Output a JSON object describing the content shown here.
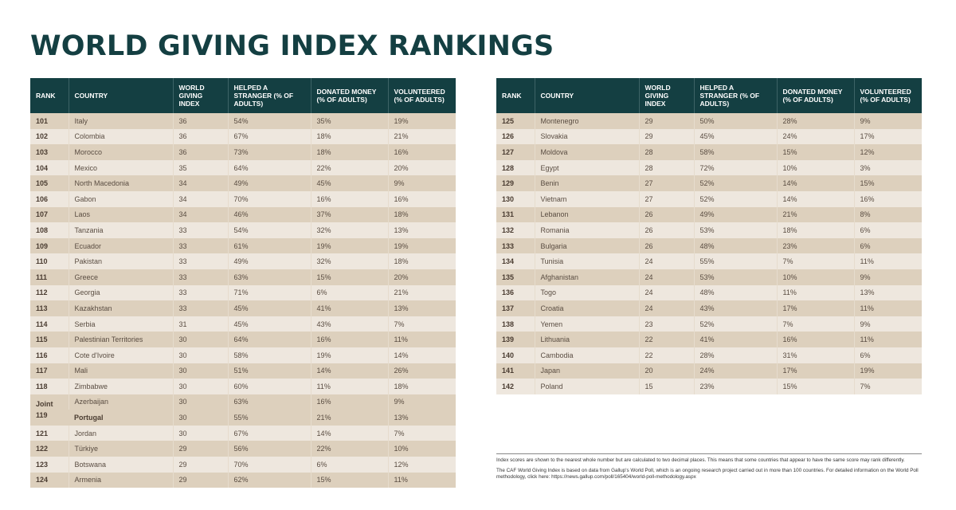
{
  "title": "WORLD GIVING INDEX RANKINGS",
  "columns": {
    "rank": "RANK",
    "country": "COUNTRY",
    "wgi": "WORLD GIVING INDEX",
    "helped": "HELPED A STRANGER (% OF ADULTS)",
    "donated": "DONATED MONEY (% OF ADULTS)",
    "volunteered": "VOLUNTEERED (% OF ADULTS)"
  },
  "colors": {
    "header_bg": "#143f42",
    "row_dark": "#ddd0bd",
    "row_light": "#eee7de",
    "title": "#143f42"
  },
  "left_table": [
    {
      "rank": "101",
      "country": "Italy",
      "wgi": "36",
      "helped": "54%",
      "donated": "35%",
      "volunteered": "19%"
    },
    {
      "rank": "102",
      "country": "Colombia",
      "wgi": "36",
      "helped": "67%",
      "donated": "18%",
      "volunteered": "21%"
    },
    {
      "rank": "103",
      "country": "Morocco",
      "wgi": "36",
      "helped": "73%",
      "donated": "18%",
      "volunteered": "16%"
    },
    {
      "rank": "104",
      "country": "Mexico",
      "wgi": "35",
      "helped": "64%",
      "donated": "22%",
      "volunteered": "20%"
    },
    {
      "rank": "105",
      "country": "North Macedonia",
      "wgi": "34",
      "helped": "49%",
      "donated": "45%",
      "volunteered": "9%"
    },
    {
      "rank": "106",
      "country": "Gabon",
      "wgi": "34",
      "helped": "70%",
      "donated": "16%",
      "volunteered": "16%"
    },
    {
      "rank": "107",
      "country": "Laos",
      "wgi": "34",
      "helped": "46%",
      "donated": "37%",
      "volunteered": "18%"
    },
    {
      "rank": "108",
      "country": "Tanzania",
      "wgi": "33",
      "helped": "54%",
      "donated": "32%",
      "volunteered": "13%"
    },
    {
      "rank": "109",
      "country": "Ecuador",
      "wgi": "33",
      "helped": "61%",
      "donated": "19%",
      "volunteered": "19%"
    },
    {
      "rank": "110",
      "country": "Pakistan",
      "wgi": "33",
      "helped": "49%",
      "donated": "32%",
      "volunteered": "18%"
    },
    {
      "rank": "111",
      "country": "Greece",
      "wgi": "33",
      "helped": "63%",
      "donated": "15%",
      "volunteered": "20%"
    },
    {
      "rank": "112",
      "country": "Georgia",
      "wgi": "33",
      "helped": "71%",
      "donated": "6%",
      "volunteered": "21%"
    },
    {
      "rank": "113",
      "country": "Kazakhstan",
      "wgi": "33",
      "helped": "45%",
      "donated": "41%",
      "volunteered": "13%"
    },
    {
      "rank": "114",
      "country": "Serbia",
      "wgi": "31",
      "helped": "45%",
      "donated": "43%",
      "volunteered": "7%"
    },
    {
      "rank": "115",
      "country": "Palestinian Territories",
      "wgi": "30",
      "helped": "64%",
      "donated": "16%",
      "volunteered": "11%"
    },
    {
      "rank": "116",
      "country": "Cote d'Ivoire",
      "wgi": "30",
      "helped": "58%",
      "donated": "19%",
      "volunteered": "14%"
    },
    {
      "rank": "117",
      "country": "Mali",
      "wgi": "30",
      "helped": "51%",
      "donated": "14%",
      "volunteered": "26%"
    },
    {
      "rank": "118",
      "country": "Zimbabwe",
      "wgi": "30",
      "helped": "60%",
      "donated": "11%",
      "volunteered": "18%"
    },
    {
      "rank": "Joint 119",
      "joint": true,
      "entries": [
        {
          "country": "Azerbaijan",
          "wgi": "30",
          "helped": "63%",
          "donated": "16%",
          "volunteered": "9%"
        },
        {
          "country": "Portugal",
          "wgi": "30",
          "helped": "55%",
          "donated": "21%",
          "volunteered": "13%"
        }
      ]
    },
    {
      "rank": "121",
      "country": "Jordan",
      "wgi": "30",
      "helped": "67%",
      "donated": "14%",
      "volunteered": "7%"
    },
    {
      "rank": "122",
      "country": "Türkiye",
      "wgi": "29",
      "helped": "56%",
      "donated": "22%",
      "volunteered": "10%"
    },
    {
      "rank": "123",
      "country": "Botswana",
      "wgi": "29",
      "helped": "70%",
      "donated": "6%",
      "volunteered": "12%"
    },
    {
      "rank": "124",
      "country": "Armenia",
      "wgi": "29",
      "helped": "62%",
      "donated": "15%",
      "volunteered": "11%"
    }
  ],
  "right_table": [
    {
      "rank": "125",
      "country": "Montenegro",
      "wgi": "29",
      "helped": "50%",
      "donated": "28%",
      "volunteered": "9%"
    },
    {
      "rank": "126",
      "country": "Slovakia",
      "wgi": "29",
      "helped": "45%",
      "donated": "24%",
      "volunteered": "17%"
    },
    {
      "rank": "127",
      "country": "Moldova",
      "wgi": "28",
      "helped": "58%",
      "donated": "15%",
      "volunteered": "12%"
    },
    {
      "rank": "128",
      "country": "Egypt",
      "wgi": "28",
      "helped": "72%",
      "donated": "10%",
      "volunteered": "3%"
    },
    {
      "rank": "129",
      "country": "Benin",
      "wgi": "27",
      "helped": "52%",
      "donated": "14%",
      "volunteered": "15%"
    },
    {
      "rank": "130",
      "country": "Vietnam",
      "wgi": "27",
      "helped": "52%",
      "donated": "14%",
      "volunteered": "16%"
    },
    {
      "rank": "131",
      "country": "Lebanon",
      "wgi": "26",
      "helped": "49%",
      "donated": "21%",
      "volunteered": "8%"
    },
    {
      "rank": "132",
      "country": "Romania",
      "wgi": "26",
      "helped": "53%",
      "donated": "18%",
      "volunteered": "6%"
    },
    {
      "rank": "133",
      "country": "Bulgaria",
      "wgi": "26",
      "helped": "48%",
      "donated": "23%",
      "volunteered": "6%"
    },
    {
      "rank": "134",
      "country": "Tunisia",
      "wgi": "24",
      "helped": "55%",
      "donated": "7%",
      "volunteered": "11%"
    },
    {
      "rank": "135",
      "country": "Afghanistan",
      "wgi": "24",
      "helped": "53%",
      "donated": "10%",
      "volunteered": "9%"
    },
    {
      "rank": "136",
      "country": "Togo",
      "wgi": "24",
      "helped": "48%",
      "donated": "11%",
      "volunteered": "13%"
    },
    {
      "rank": "137",
      "country": "Croatia",
      "wgi": "24",
      "helped": "43%",
      "donated": "17%",
      "volunteered": "11%"
    },
    {
      "rank": "138",
      "country": "Yemen",
      "wgi": "23",
      "helped": "52%",
      "donated": "7%",
      "volunteered": "9%"
    },
    {
      "rank": "139",
      "country": "Lithuania",
      "wgi": "22",
      "helped": "41%",
      "donated": "16%",
      "volunteered": "11%"
    },
    {
      "rank": "140",
      "country": "Cambodia",
      "wgi": "22",
      "helped": "28%",
      "donated": "31%",
      "volunteered": "6%"
    },
    {
      "rank": "141",
      "country": "Japan",
      "wgi": "20",
      "helped": "24%",
      "donated": "17%",
      "volunteered": "19%"
    },
    {
      "rank": "142",
      "country": "Poland",
      "wgi": "15",
      "helped": "23%",
      "donated": "15%",
      "volunteered": "7%"
    }
  ],
  "notes": [
    "Index scores are shown to the nearest whole number but are calculated to two decimal places. This means that some countries that appear to have the same score may rank differently.",
    "The CAF World Giving Index is based on data from Gallup's World Poll, which is an ongoing research project carried out in more than 100 countries. For detailed information on the World Poll methodology, click here: https://news.gallup.com/poll/165404/world-poll-methodology.aspx"
  ]
}
